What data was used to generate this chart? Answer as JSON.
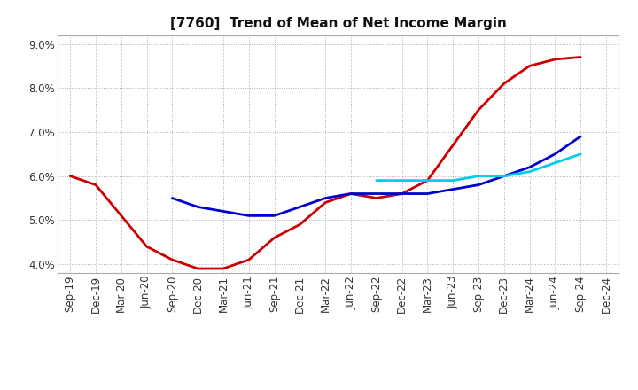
{
  "title": "[7760]  Trend of Mean of Net Income Margin",
  "ylim": [
    0.038,
    0.092
  ],
  "yticks": [
    0.04,
    0.05,
    0.06,
    0.07,
    0.08,
    0.09
  ],
  "ytick_labels": [
    "4.0%",
    "5.0%",
    "6.0%",
    "7.0%",
    "8.0%",
    "9.0%"
  ],
  "ytop_label": "9.0%",
  "background_color": "#ffffff",
  "plot_bg_color": "#ffffff",
  "grid_color": "#999999",
  "x_labels": [
    "Sep-19",
    "Dec-19",
    "Mar-20",
    "Jun-20",
    "Sep-20",
    "Dec-20",
    "Mar-21",
    "Jun-21",
    "Sep-21",
    "Dec-21",
    "Mar-22",
    "Jun-22",
    "Sep-22",
    "Dec-22",
    "Mar-23",
    "Jun-23",
    "Sep-23",
    "Dec-23",
    "Mar-24",
    "Jun-24",
    "Sep-24",
    "Dec-24"
  ],
  "series_3y": [
    0.06,
    0.058,
    0.051,
    0.044,
    0.041,
    0.039,
    0.039,
    0.041,
    0.046,
    0.049,
    0.054,
    0.056,
    0.055,
    0.056,
    0.059,
    0.067,
    0.075,
    0.081,
    0.085,
    0.0865,
    0.087,
    null
  ],
  "series_5y": [
    null,
    null,
    null,
    null,
    0.055,
    0.053,
    0.052,
    0.051,
    0.051,
    0.053,
    0.055,
    0.056,
    0.056,
    0.056,
    0.056,
    0.057,
    0.058,
    0.06,
    0.062,
    0.065,
    0.069,
    null
  ],
  "series_7y": [
    null,
    null,
    null,
    null,
    null,
    null,
    null,
    null,
    null,
    null,
    null,
    null,
    0.059,
    0.059,
    0.059,
    0.059,
    0.06,
    0.06,
    0.061,
    0.063,
    0.065,
    null
  ],
  "series_10y": [
    null,
    null,
    null,
    null,
    null,
    null,
    null,
    null,
    null,
    null,
    null,
    null,
    null,
    null,
    null,
    null,
    null,
    null,
    null,
    null,
    null,
    null
  ],
  "color_3y": "#cc0000",
  "color_5y": "#0000cc",
  "color_7y": "#00ccee",
  "color_10y": "#007700",
  "title_fontsize": 11,
  "tick_fontsize": 8.5,
  "legend_fontsize": 9
}
